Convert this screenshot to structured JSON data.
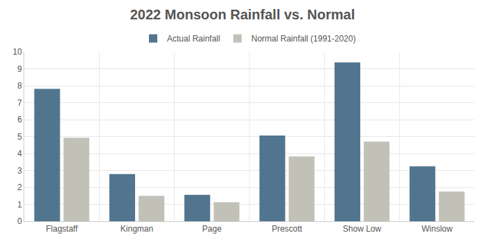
{
  "chart_data": {
    "type": "bar",
    "title": "2022 Monsoon Rainfall vs. Normal",
    "categories": [
      "Flagstaff",
      "Kingman",
      "Page",
      "Prescott",
      "Show Low",
      "Winslow"
    ],
    "series": [
      {
        "name": "Actual Rainfall",
        "color": "#52758f",
        "values": [
          7.82,
          2.79,
          1.56,
          5.06,
          9.38,
          3.24
        ]
      },
      {
        "name": "Normal Rainfall (1991-2020)",
        "color": "#c2c1b8",
        "values": [
          4.93,
          1.5,
          1.12,
          3.83,
          4.7,
          1.76
        ]
      }
    ],
    "ylim": [
      0,
      10
    ],
    "yticks": [
      0,
      1,
      2,
      3,
      4,
      5,
      6,
      7,
      8,
      9,
      10
    ],
    "grid": true,
    "legend": "top"
  }
}
